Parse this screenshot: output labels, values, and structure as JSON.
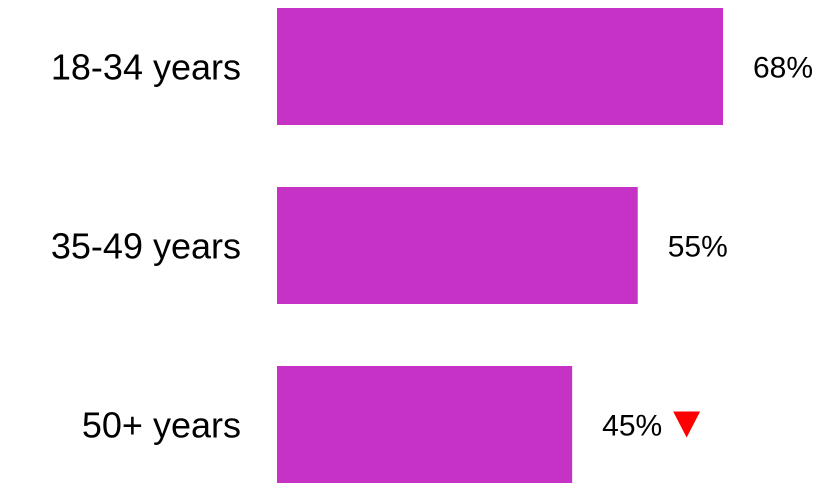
{
  "chart_data": {
    "type": "bar",
    "orientation": "horizontal",
    "categories": [
      "18-34 years",
      "35-49 years",
      "50+ years"
    ],
    "values": [
      68,
      55,
      45
    ],
    "value_labels": [
      "68%",
      "55%",
      "45%"
    ],
    "xlim": [
      0,
      68
    ],
    "grid": false,
    "legend": "none",
    "indicators": [
      null,
      null,
      "down-triangle-icon"
    ],
    "colors": {
      "bar": "#C632C6",
      "indicator_down": "#FF0000",
      "text": "#000000"
    }
  }
}
